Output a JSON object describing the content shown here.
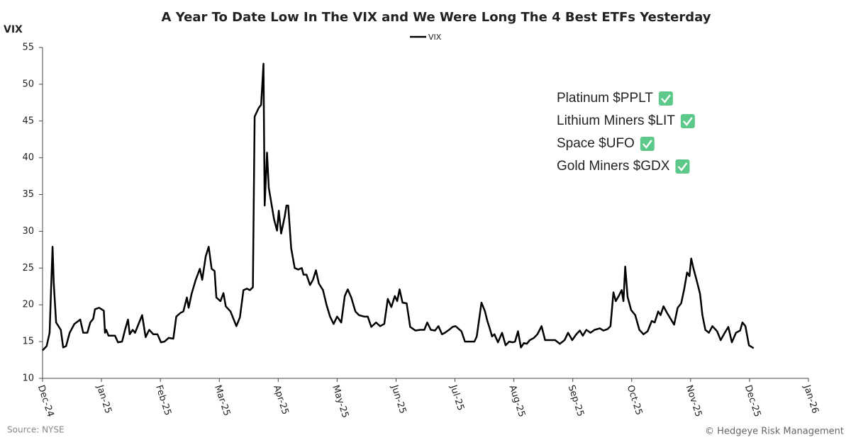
{
  "chart_data": {
    "type": "line",
    "title": "A Year To Date Low In The VIX and We Were Long The 4 Best ETFs Yesterday",
    "y_label": "VIX",
    "source": "Source: NYSE",
    "credit": "© Hedgeye Risk Management",
    "annotations": [
      "Platinum $PPLT",
      "Lithium Miners $LIT",
      "Space $UFO",
      "Gold Miners $GDX"
    ],
    "xlim": [
      0,
      13
    ],
    "xticks": [
      {
        "value": 0,
        "label": "Dec-24"
      },
      {
        "value": 1,
        "label": "Jan-25"
      },
      {
        "value": 2,
        "label": "Feb-25"
      },
      {
        "value": 3,
        "label": "Mar-25"
      },
      {
        "value": 4,
        "label": "Apr-25"
      },
      {
        "value": 5,
        "label": "May-25"
      },
      {
        "value": 6,
        "label": "Jun-25"
      },
      {
        "value": 7,
        "label": "Jul-25"
      },
      {
        "value": 8,
        "label": "Aug-25"
      },
      {
        "value": 9,
        "label": "Sep-25"
      },
      {
        "value": 10,
        "label": "Oct-25"
      },
      {
        "value": 11,
        "label": "Nov-25"
      },
      {
        "value": 12,
        "label": "Dec-25"
      },
      {
        "value": 13,
        "label": "Jan-26"
      }
    ],
    "ylim": [
      10,
      55
    ],
    "yticks": [
      10,
      15,
      20,
      25,
      30,
      35,
      40,
      45,
      50,
      55
    ],
    "grid": false,
    "x": [
      0,
      0.07,
      0.12,
      0.14,
      0.17,
      0.19,
      0.23,
      0.31,
      0.35,
      0.4,
      0.46,
      0.54,
      0.64,
      0.69,
      0.76,
      0.81,
      0.86,
      0.89,
      0.96,
      1.04,
      1.06,
      1.08,
      1.12,
      1.23,
      1.28,
      1.35,
      1.4,
      1.45,
      1.48,
      1.53,
      1.57,
      1.64,
      1.69,
      1.75,
      1.81,
      1.88,
      1.95,
      2.01,
      2.07,
      2.14,
      2.22,
      2.27,
      2.34,
      2.39,
      2.45,
      2.48,
      2.53,
      2.6,
      2.67,
      2.71,
      2.77,
      2.82,
      2.87,
      2.92,
      2.95,
      3.02,
      3.07,
      3.11,
      3.19,
      3.29,
      3.35,
      3.41,
      3.47,
      3.52,
      3.57,
      3.6,
      3.67,
      3.71,
      3.75,
      3.77,
      3.81,
      3.84,
      3.93,
      3.98,
      4.01,
      4.05,
      4.11,
      4.14,
      4.17,
      4.22,
      4.28,
      4.34,
      4.4,
      4.43,
      4.48,
      4.54,
      4.59,
      4.64,
      4.69,
      4.76,
      4.82,
      4.88,
      4.94,
      5.0,
      5.07,
      5.13,
      5.18,
      5.24,
      5.31,
      5.37,
      5.46,
      5.52,
      5.58,
      5.66,
      5.73,
      5.8,
      5.86,
      5.92,
      5.98,
      6.02,
      6.06,
      6.11,
      6.18,
      6.24,
      6.33,
      6.41,
      6.48,
      6.53,
      6.59,
      6.66,
      6.72,
      6.78,
      6.83,
      6.9,
      6.96,
      7.01,
      7.11,
      7.17,
      7.25,
      7.33,
      7.37,
      7.45,
      7.51,
      7.55,
      7.59,
      7.63,
      7.67,
      7.73,
      7.8,
      7.86,
      7.92,
      7.98,
      8.02,
      8.07,
      8.12,
      8.17,
      8.22,
      8.27,
      8.34,
      8.4,
      8.47,
      8.53,
      8.61,
      8.7,
      8.78,
      8.86,
      8.92,
      8.99,
      9.06,
      9.12,
      9.17,
      9.23,
      9.3,
      9.37,
      9.46,
      9.52,
      9.59,
      9.64,
      9.69,
      9.73,
      9.78,
      9.83,
      9.86,
      9.89,
      9.93,
      9.99,
      10.06,
      10.13,
      10.2,
      10.27,
      10.34,
      10.39,
      10.45,
      10.49,
      10.54,
      10.6,
      10.66,
      10.72,
      10.78,
      10.84,
      10.89,
      10.94,
      10.98,
      11.01,
      11.05,
      11.1,
      11.16,
      11.2,
      11.25,
      11.31,
      11.37,
      11.45,
      11.51,
      11.58,
      11.64,
      11.7,
      11.77,
      11.84,
      11.88,
      11.93,
      11.99,
      12.07
    ],
    "series": [
      {
        "name": "VIX",
        "color": "#000000",
        "values": [
          13.8,
          14.4,
          16.2,
          21,
          27.9,
          23,
          17.6,
          16.6,
          14.2,
          14.4,
          16.2,
          17.4,
          18,
          16.2,
          16.2,
          17.6,
          18.1,
          19.4,
          19.6,
          19.2,
          16.2,
          16.6,
          15.8,
          15.8,
          14.9,
          15,
          16.6,
          18,
          16,
          16.6,
          16.2,
          17.6,
          18.6,
          15.6,
          16.6,
          16,
          16,
          14.9,
          15,
          15.5,
          15.4,
          18.4,
          18.9,
          19.1,
          21,
          19.6,
          21.5,
          23.4,
          24.9,
          23.4,
          26.6,
          27.9,
          24.9,
          24.6,
          21,
          20.5,
          21.6,
          19.8,
          19.1,
          17.1,
          18.3,
          22,
          22.2,
          22,
          22.4,
          45.6,
          46.8,
          47.2,
          52.8,
          33.5,
          40.7,
          35.9,
          31.6,
          30.1,
          32.8,
          29.7,
          32,
          33.5,
          33.5,
          27.7,
          25,
          24.8,
          25,
          24.1,
          24.1,
          22.7,
          23.4,
          24.7,
          22.9,
          22,
          20,
          18.4,
          17.4,
          18.4,
          17.6,
          21.2,
          22.1,
          21,
          19.1,
          18.6,
          18.4,
          18.4,
          17,
          17.6,
          17.1,
          17.4,
          20.8,
          19.7,
          21.2,
          20.5,
          22.1,
          20.3,
          20.2,
          17,
          16.5,
          16.6,
          16.6,
          17.6,
          16.6,
          16.5,
          17.1,
          16,
          16.2,
          16.6,
          17,
          17.1,
          16.4,
          15,
          15,
          15,
          15.7,
          20.3,
          19.1,
          17.8,
          16.8,
          15.7,
          16,
          14.9,
          16.2,
          14.5,
          15,
          14.9,
          15,
          16.4,
          14.2,
          14.8,
          14.7,
          15.2,
          15.5,
          16,
          17.1,
          15.2,
          15.2,
          15.2,
          14.7,
          15.2,
          16.2,
          15.2,
          16,
          16.5,
          15.8,
          16.6,
          16.2,
          16.6,
          16.8,
          16.5,
          16.7,
          17.1,
          21.7,
          20.5,
          21.2,
          22,
          20.5,
          25.2,
          21.1,
          19.3,
          18.6,
          16.6,
          16,
          16.4,
          17.8,
          17.6,
          19.1,
          18.6,
          19.8,
          18.9,
          18.1,
          17.3,
          19.6,
          20.2,
          22.1,
          24.4,
          23.9,
          26.3,
          24.9,
          23.4,
          21.5,
          18.6,
          16.6,
          16.2,
          17.1,
          16.4,
          15.2,
          16.2,
          17,
          14.9,
          16.2,
          16.5,
          17.6,
          17.1,
          14.5,
          14.1
        ]
      }
    ]
  }
}
